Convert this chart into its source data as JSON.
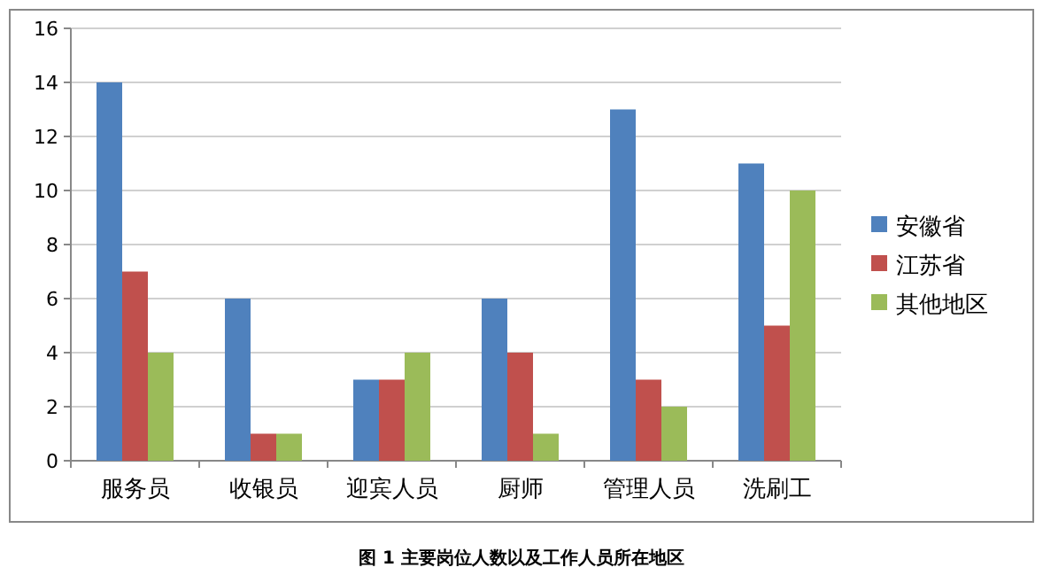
{
  "chart_data": {
    "type": "bar",
    "categories": [
      "服务员",
      "收银员",
      "迎宾人员",
      "厨师",
      "管理人员",
      "洗刷工"
    ],
    "series": [
      {
        "name": "安徽省",
        "color": "#4f81bd",
        "values": [
          14,
          6,
          3,
          6,
          13,
          11
        ]
      },
      {
        "name": "江苏省",
        "color": "#c0504d",
        "values": [
          7,
          1,
          3,
          4,
          3,
          5
        ]
      },
      {
        "name": "其他地区",
        "color": "#9bbb59",
        "values": [
          4,
          1,
          4,
          1,
          2,
          10
        ]
      }
    ],
    "ylim": [
      0,
      16
    ],
    "yticks": [
      0,
      2,
      4,
      6,
      8,
      10,
      12,
      14,
      16
    ],
    "grid": "y",
    "legend": "right",
    "annotations": [
      "图 1 主要岗位人数以及工作人员所在地区"
    ]
  }
}
